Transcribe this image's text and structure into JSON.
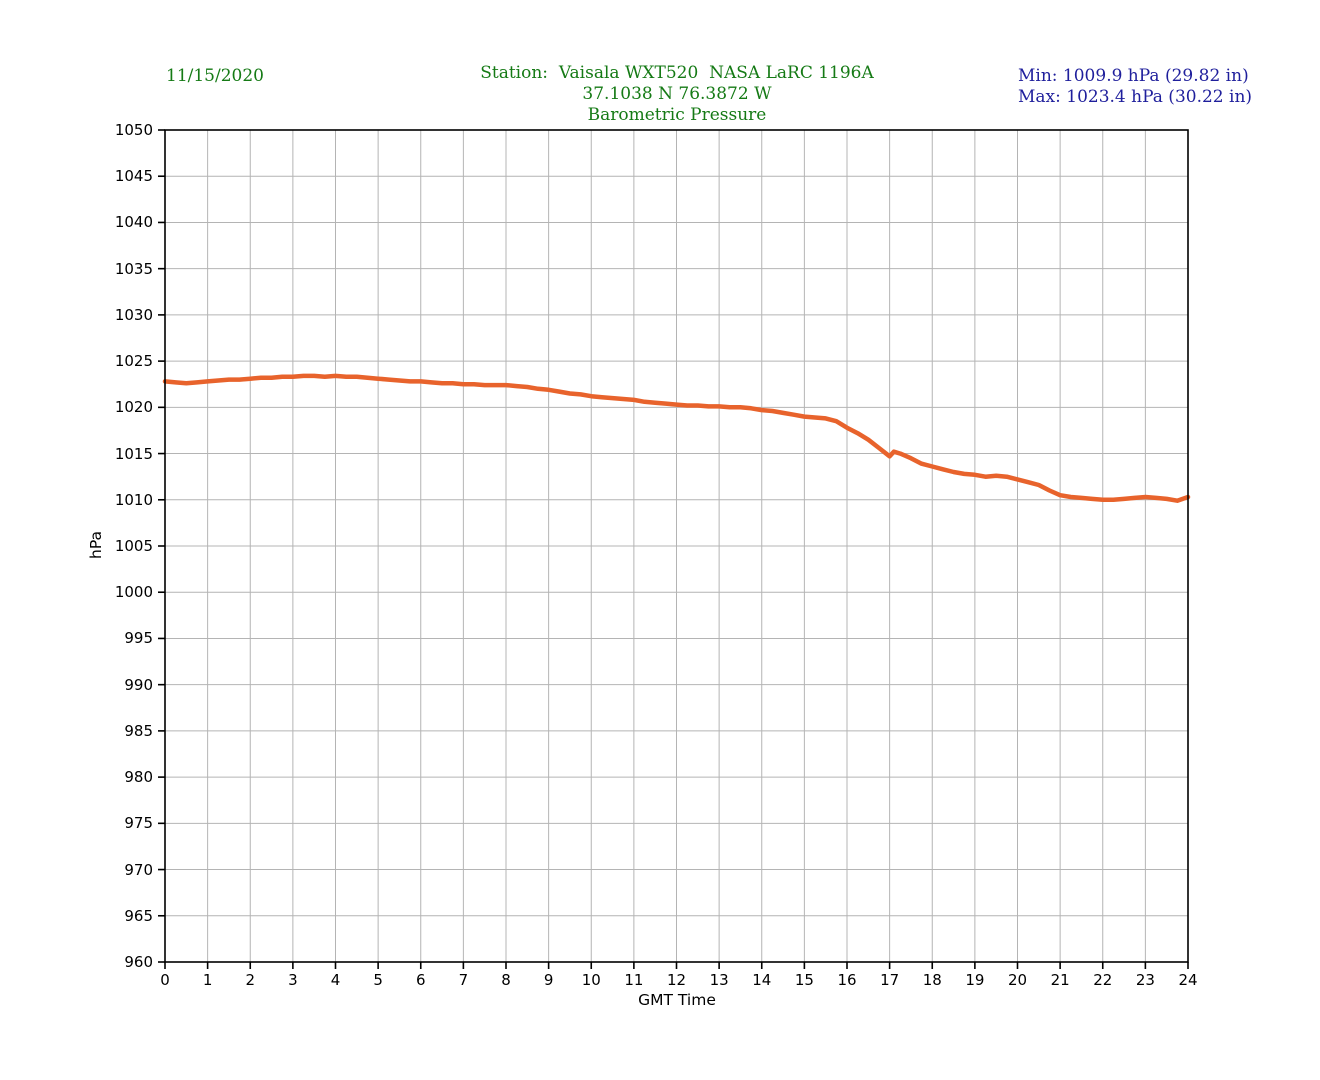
{
  "header": {
    "date": "11/15/2020",
    "title_line1": "Station:  Vaisala WXT520  NASA LaRC 1196A",
    "title_line2": "37.1038 N 76.3872 W",
    "title_line3": "Barometric Pressure",
    "min_label": "Min: 1009.9 hPa (29.82 in)",
    "max_label": "Max: 1023.4 hPa (30.22 in)"
  },
  "colors": {
    "header_green": "#157a15",
    "minmax_blue": "#1f1f9c",
    "line_orange": "#e8632c",
    "grid_gray": "#b4b4b4",
    "axis_black": "#000000"
  },
  "chart_data": {
    "type": "line",
    "title": "Barometric Pressure",
    "subtitle": "Station:  Vaisala WXT520  NASA LaRC 1196A — 37.1038 N 76.3872 W",
    "date": "11/15/2020",
    "xlabel": "GMT Time",
    "ylabel": "hPa",
    "xlim": [
      0,
      24
    ],
    "ylim": [
      960,
      1050
    ],
    "x_ticks": [
      0,
      1,
      2,
      3,
      4,
      5,
      6,
      7,
      8,
      9,
      10,
      11,
      12,
      13,
      14,
      15,
      16,
      17,
      18,
      19,
      20,
      21,
      22,
      23,
      24
    ],
    "y_ticks": [
      960,
      965,
      970,
      975,
      980,
      985,
      990,
      995,
      1000,
      1005,
      1010,
      1015,
      1020,
      1025,
      1030,
      1035,
      1040,
      1045,
      1050
    ],
    "grid": true,
    "legend": "none",
    "min_hpa": 1009.9,
    "max_hpa": 1023.4,
    "min_in": 29.82,
    "max_in": 30.22,
    "line_color": "#e8632c",
    "series": [
      {
        "name": "barometric_pressure_hPa",
        "points": [
          [
            0.0,
            1022.8
          ],
          [
            0.25,
            1022.7
          ],
          [
            0.5,
            1022.6
          ],
          [
            0.75,
            1022.7
          ],
          [
            1.0,
            1022.8
          ],
          [
            1.25,
            1022.9
          ],
          [
            1.5,
            1023.0
          ],
          [
            1.75,
            1023.0
          ],
          [
            2.0,
            1023.1
          ],
          [
            2.25,
            1023.2
          ],
          [
            2.5,
            1023.2
          ],
          [
            2.75,
            1023.3
          ],
          [
            3.0,
            1023.3
          ],
          [
            3.25,
            1023.4
          ],
          [
            3.5,
            1023.4
          ],
          [
            3.75,
            1023.3
          ],
          [
            4.0,
            1023.4
          ],
          [
            4.25,
            1023.3
          ],
          [
            4.5,
            1023.3
          ],
          [
            4.75,
            1023.2
          ],
          [
            5.0,
            1023.1
          ],
          [
            5.25,
            1023.0
          ],
          [
            5.5,
            1022.9
          ],
          [
            5.75,
            1022.8
          ],
          [
            6.0,
            1022.8
          ],
          [
            6.25,
            1022.7
          ],
          [
            6.5,
            1022.6
          ],
          [
            6.75,
            1022.6
          ],
          [
            7.0,
            1022.5
          ],
          [
            7.25,
            1022.5
          ],
          [
            7.5,
            1022.4
          ],
          [
            7.75,
            1022.4
          ],
          [
            8.0,
            1022.4
          ],
          [
            8.25,
            1022.3
          ],
          [
            8.5,
            1022.2
          ],
          [
            8.75,
            1022.0
          ],
          [
            9.0,
            1021.9
          ],
          [
            9.25,
            1021.7
          ],
          [
            9.5,
            1021.5
          ],
          [
            9.75,
            1021.4
          ],
          [
            10.0,
            1021.2
          ],
          [
            10.25,
            1021.1
          ],
          [
            10.5,
            1021.0
          ],
          [
            10.75,
            1020.9
          ],
          [
            11.0,
            1020.8
          ],
          [
            11.25,
            1020.6
          ],
          [
            11.5,
            1020.5
          ],
          [
            11.75,
            1020.4
          ],
          [
            12.0,
            1020.3
          ],
          [
            12.25,
            1020.2
          ],
          [
            12.5,
            1020.2
          ],
          [
            12.75,
            1020.1
          ],
          [
            13.0,
            1020.1
          ],
          [
            13.25,
            1020.0
          ],
          [
            13.5,
            1020.0
          ],
          [
            13.75,
            1019.9
          ],
          [
            14.0,
            1019.7
          ],
          [
            14.25,
            1019.6
          ],
          [
            14.5,
            1019.4
          ],
          [
            14.75,
            1019.2
          ],
          [
            15.0,
            1019.0
          ],
          [
            15.25,
            1018.9
          ],
          [
            15.5,
            1018.8
          ],
          [
            15.75,
            1018.5
          ],
          [
            16.0,
            1017.8
          ],
          [
            16.25,
            1017.2
          ],
          [
            16.5,
            1016.5
          ],
          [
            16.75,
            1015.6
          ],
          [
            17.0,
            1014.7
          ],
          [
            17.1,
            1015.2
          ],
          [
            17.25,
            1015.0
          ],
          [
            17.5,
            1014.5
          ],
          [
            17.75,
            1013.9
          ],
          [
            18.0,
            1013.6
          ],
          [
            18.25,
            1013.3
          ],
          [
            18.5,
            1013.0
          ],
          [
            18.75,
            1012.8
          ],
          [
            19.0,
            1012.7
          ],
          [
            19.25,
            1012.5
          ],
          [
            19.5,
            1012.6
          ],
          [
            19.75,
            1012.5
          ],
          [
            20.0,
            1012.2
          ],
          [
            20.25,
            1011.9
          ],
          [
            20.5,
            1011.6
          ],
          [
            20.75,
            1011.0
          ],
          [
            21.0,
            1010.5
          ],
          [
            21.25,
            1010.3
          ],
          [
            21.5,
            1010.2
          ],
          [
            21.75,
            1010.1
          ],
          [
            22.0,
            1010.0
          ],
          [
            22.25,
            1010.0
          ],
          [
            22.5,
            1010.1
          ],
          [
            22.75,
            1010.2
          ],
          [
            23.0,
            1010.3
          ],
          [
            23.25,
            1010.2
          ],
          [
            23.5,
            1010.1
          ],
          [
            23.75,
            1009.9
          ],
          [
            24.0,
            1010.3
          ]
        ]
      }
    ]
  }
}
